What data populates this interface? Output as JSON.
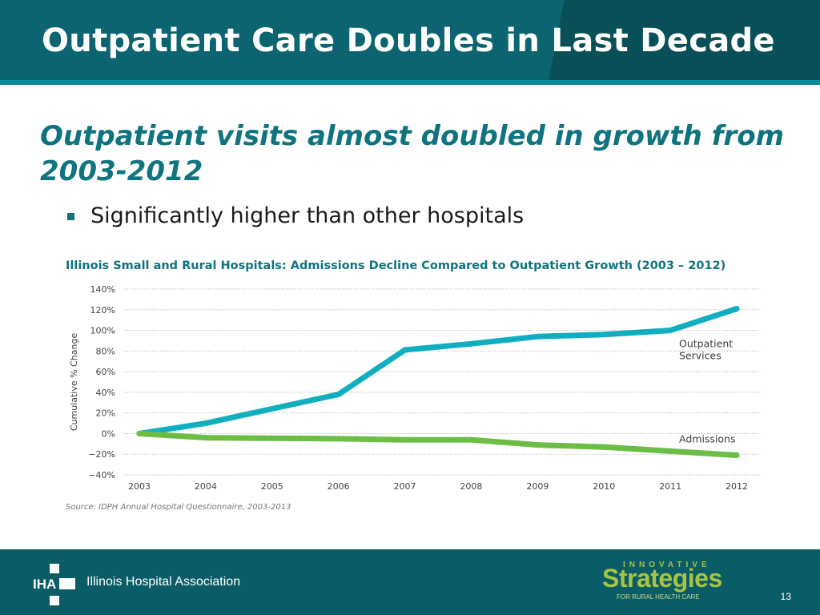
{
  "slide": {
    "title": "Outpatient Care Doubles in Last Decade",
    "subtitle": "Outpatient visits almost doubled in growth from 2003-2012",
    "bullet": "Significantly higher than other hospitals",
    "page_number": "13"
  },
  "footer": {
    "org_name": "Illinois Hospital Association",
    "org_logo_text": "IHA",
    "partner_top": "INNOVATIVE",
    "partner_main": "Strategies",
    "partner_sub": "FOR RURAL HEALTH CARE"
  },
  "colors": {
    "header": "#0b6470",
    "accent_teal": "#0f7480",
    "outpatient_line": "#10aebe",
    "admissions_line": "#6cbd45",
    "footer": "#0a5d67"
  },
  "chart_data": {
    "type": "line",
    "title": "Illinois Small and Rural Hospitals: Admissions Decline Compared to Outpatient Growth (2003 – 2012)",
    "xlabel": "",
    "ylabel": "Cumulative % Change",
    "source": "Source: IDPH Annual Hospital Questionnaire, 2003-2013",
    "categories": [
      "2003",
      "2004",
      "2005",
      "2006",
      "2007",
      "2008",
      "2009",
      "2010",
      "2011",
      "2012"
    ],
    "ytick_labels": [
      "140%",
      "120%",
      "100%",
      "80%",
      "60%",
      "40%",
      "20%",
      "0%",
      "−20%",
      "−40%"
    ],
    "ylim": [
      -40,
      140
    ],
    "grid": true,
    "series": [
      {
        "name": "Outpatient Services",
        "label_lines": [
          "Outpatient",
          "Services"
        ],
        "color": "#10aebe",
        "values": [
          0,
          10,
          24,
          38,
          81,
          87,
          94,
          96,
          100,
          121
        ]
      },
      {
        "name": "Admissions",
        "label_lines": [
          "Admissions"
        ],
        "color": "#6cbd45",
        "values": [
          0,
          -4,
          -4.5,
          -5,
          -6,
          -6,
          -11,
          -13,
          -17,
          -21
        ]
      }
    ]
  }
}
